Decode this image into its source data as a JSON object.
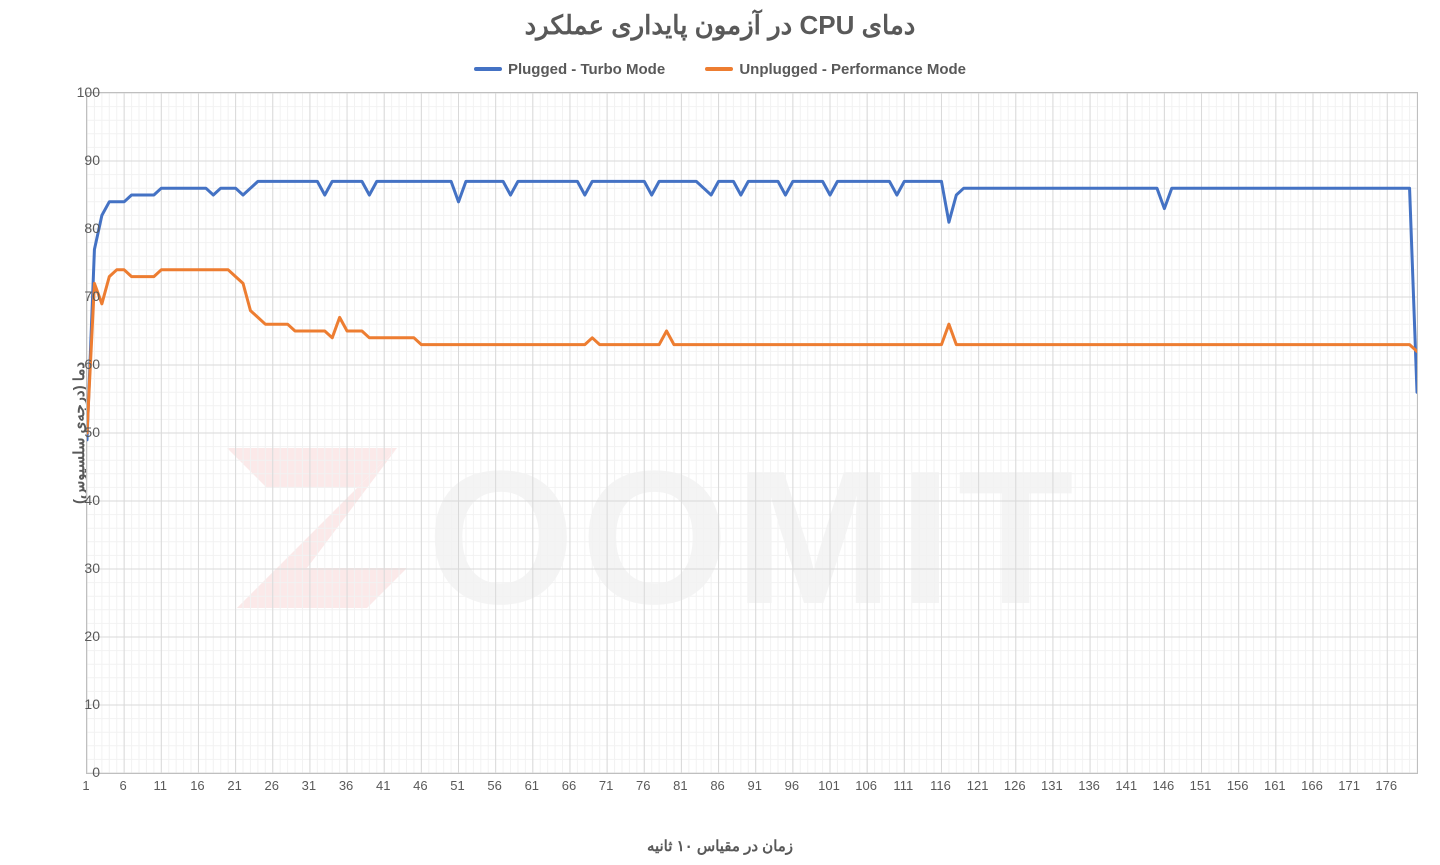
{
  "chart": {
    "type": "line",
    "title": "دمای CPU در آزمون پایداری عملکرد",
    "title_fontsize": 26,
    "ylabel": "دما (درجه‌ی سلسیوس)",
    "xlabel": "زمان در مقیاس ۱۰ ثانیه",
    "label_fontsize": 15,
    "background_color": "#ffffff",
    "plot_border_color": "#bfbfbf",
    "grid_minor_color": "#f2f2f2",
    "grid_major_color": "#d9d9d9",
    "tick_color": "#595959",
    "tick_fontsize": 14,
    "xlim": [
      1,
      180
    ],
    "ylim": [
      0,
      100
    ],
    "ytick_step": 10,
    "xtick_step": 5,
    "xtick_start": 1,
    "line_width": 3,
    "legend_position": "top-center",
    "series": [
      {
        "name": "Plugged - Turbo Mode",
        "color": "#4472c4",
        "data": [
          49,
          77,
          82,
          84,
          84,
          84,
          85,
          85,
          85,
          85,
          86,
          86,
          86,
          86,
          86,
          86,
          86,
          85,
          86,
          86,
          86,
          85,
          86,
          87,
          87,
          87,
          87,
          87,
          87,
          87,
          87,
          87,
          85,
          87,
          87,
          87,
          87,
          87,
          85,
          87,
          87,
          87,
          87,
          87,
          87,
          87,
          87,
          87,
          87,
          87,
          84,
          87,
          87,
          87,
          87,
          87,
          87,
          85,
          87,
          87,
          87,
          87,
          87,
          87,
          87,
          87,
          87,
          85,
          87,
          87,
          87,
          87,
          87,
          87,
          87,
          87,
          85,
          87,
          87,
          87,
          87,
          87,
          87,
          86,
          85,
          87,
          87,
          87,
          85,
          87,
          87,
          87,
          87,
          87,
          85,
          87,
          87,
          87,
          87,
          87,
          85,
          87,
          87,
          87,
          87,
          87,
          87,
          87,
          87,
          85,
          87,
          87,
          87,
          87,
          87,
          87,
          81,
          85,
          86,
          86,
          86,
          86,
          86,
          86,
          86,
          86,
          86,
          86,
          86,
          86,
          86,
          86,
          86,
          86,
          86,
          86,
          86,
          86,
          86,
          86,
          86,
          86,
          86,
          86,
          86,
          83,
          86,
          86,
          86,
          86,
          86,
          86,
          86,
          86,
          86,
          86,
          86,
          86,
          86,
          86,
          86,
          86,
          86,
          86,
          86,
          86,
          86,
          86,
          86,
          86,
          86,
          86,
          86,
          86,
          86,
          86,
          86,
          86,
          86,
          56
        ]
      },
      {
        "name": "Unplugged - Performance Mode",
        "color": "#ed7d31",
        "data": [
          50,
          72,
          69,
          73,
          74,
          74,
          73,
          73,
          73,
          73,
          74,
          74,
          74,
          74,
          74,
          74,
          74,
          74,
          74,
          74,
          73,
          72,
          68,
          67,
          66,
          66,
          66,
          66,
          65,
          65,
          65,
          65,
          65,
          64,
          67,
          65,
          65,
          65,
          64,
          64,
          64,
          64,
          64,
          64,
          64,
          63,
          63,
          63,
          63,
          63,
          63,
          63,
          63,
          63,
          63,
          63,
          63,
          63,
          63,
          63,
          63,
          63,
          63,
          63,
          63,
          63,
          63,
          63,
          64,
          63,
          63,
          63,
          63,
          63,
          63,
          63,
          63,
          63,
          65,
          63,
          63,
          63,
          63,
          63,
          63,
          63,
          63,
          63,
          63,
          63,
          63,
          63,
          63,
          63,
          63,
          63,
          63,
          63,
          63,
          63,
          63,
          63,
          63,
          63,
          63,
          63,
          63,
          63,
          63,
          63,
          63,
          63,
          63,
          63,
          63,
          63,
          66,
          63,
          63,
          63,
          63,
          63,
          63,
          63,
          63,
          63,
          63,
          63,
          63,
          63,
          63,
          63,
          63,
          63,
          63,
          63,
          63,
          63,
          63,
          63,
          63,
          63,
          63,
          63,
          63,
          63,
          63,
          63,
          63,
          63,
          63,
          63,
          63,
          63,
          63,
          63,
          63,
          63,
          63,
          63,
          63,
          63,
          63,
          63,
          63,
          63,
          63,
          63,
          63,
          63,
          63,
          63,
          63,
          63,
          63,
          63,
          63,
          63,
          63,
          62
        ]
      }
    ],
    "watermark_text": "ZOOMIT",
    "watermark_z_color": "#f4b3b3",
    "watermark_text_color": "#d9d9d9"
  }
}
